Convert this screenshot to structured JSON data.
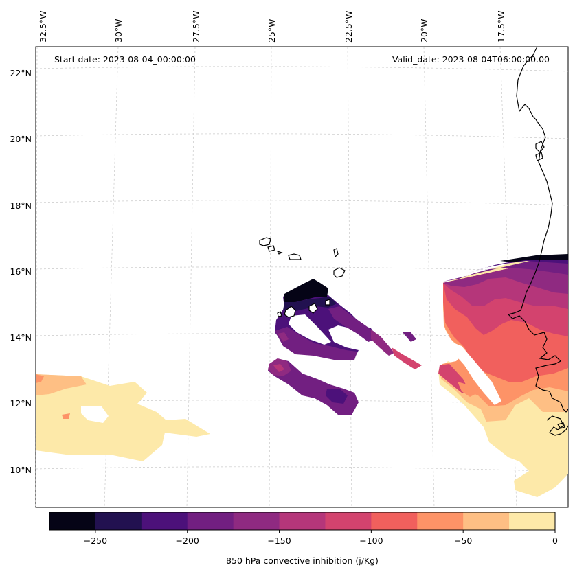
{
  "map": {
    "start_date_text": "Start date: 2023-08-04_00:00:00",
    "valid_date_text": "Valid_date: 2023-08-04T06:00:00.00",
    "lon_labels": [
      "32.5°W",
      "30°W",
      "27.5°W",
      "25°W",
      "22.5°W",
      "20°W",
      "17.5°W"
    ],
    "lat_labels": [
      "22°N",
      "20°N",
      "18°N",
      "16°N",
      "14°N",
      "12°N",
      "10°N"
    ],
    "colorbar": {
      "label": "850 hPa convective inhibition (j/Kg)",
      "tick_labels": [
        "−250",
        "−200",
        "−150",
        "−100",
        "−50",
        "0"
      ],
      "levels": [
        -275,
        -250,
        -225,
        -200,
        -175,
        -150,
        -125,
        -100,
        -75,
        -50,
        -25,
        0
      ],
      "colors": [
        "#050416",
        "#221150",
        "#4c117a",
        "#721f81",
        "#8f2a81",
        "#b5367a",
        "#d3436e",
        "#f1605d",
        "#fd9367",
        "#febf84",
        "#fde9a9"
      ]
    }
  }
}
